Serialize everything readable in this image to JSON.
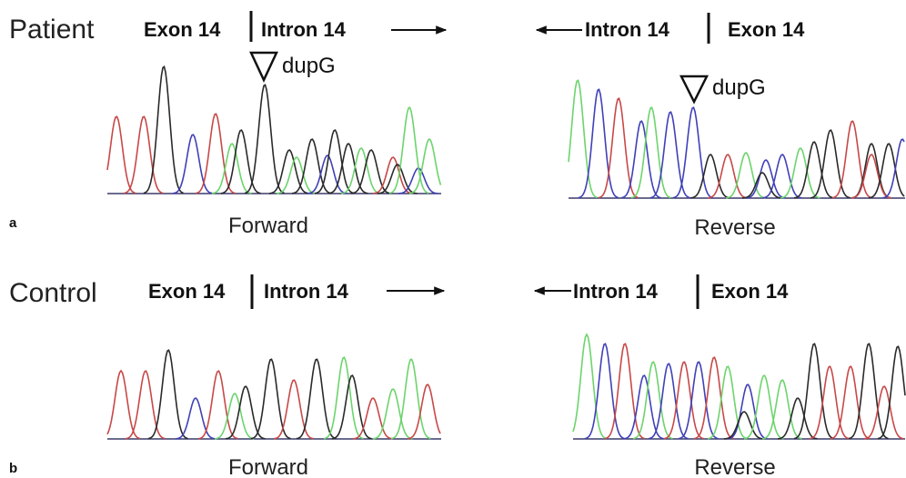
{
  "panels": [
    {
      "label": "a",
      "subject": "Patient",
      "forward": {
        "left": "Exon 14",
        "right": "Intron 14",
        "marker": "dupG",
        "caption": "Forward"
      },
      "reverse": {
        "left": "Intron 14",
        "right": "Exon 14",
        "marker": "dupG",
        "caption": "Reverse"
      }
    },
    {
      "label": "b",
      "subject": "Control",
      "forward": {
        "left": "Exon 14",
        "right": "Intron 14",
        "caption": "Forward"
      },
      "reverse": {
        "left": "Intron 14",
        "right": "Exon 14",
        "caption": "Reverse"
      }
    }
  ]
}
